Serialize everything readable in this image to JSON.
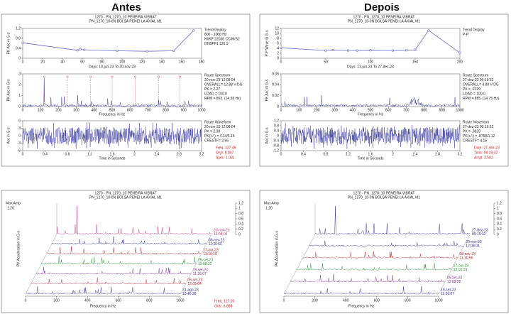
{
  "headings": [
    "Antes",
    "Depois"
  ],
  "panels_top": [
    {
      "title": "1270 - PN_1270_10 PENEIRA VIBRAT",
      "subtitle": "PN_1270_10-0N   BOLSA PENEI LA AXIAL M1",
      "trend": {
        "type": "line",
        "y_label": "PK Acc in G-s",
        "x_caption": "Days: 10-jun-23  To  20-nov-23",
        "info": [
          "Trend Display",
          "800 - 1000 Hz",
          "HI/KF 22036 CC/M/S2",
          "DHBPF1 126.9"
        ],
        "x": [
          0,
          55,
          58,
          62,
          95,
          125,
          152,
          172
        ],
        "values": [
          0.62,
          0.32,
          0.36,
          0.34,
          0.3,
          0.28,
          0.3,
          1.12
        ],
        "xlim": [
          0,
          180
        ],
        "ylim": [
          0,
          1.2
        ],
        "xticks": [
          0,
          20,
          40,
          60,
          80,
          100,
          120,
          140,
          160,
          180
        ],
        "yticks": [
          0,
          0.4,
          0.8,
          1.2
        ]
      },
      "spectrum": {
        "y_label": "PK Acc in G-s",
        "x_label": "Frequency in Hz",
        "info": [
          "Route Spectrum",
          "20-nov-23 12:08:04",
          "OVERALL= 12.83 V-DG",
          "PK = 2.27",
          "LOAD = 100.0",
          "RPM = 863. (14.38 Hz)"
        ],
        "xlim": [
          0,
          1000
        ],
        "xticks": [
          0,
          100,
          200,
          300,
          400,
          500,
          600,
          700,
          800,
          900,
          1000
        ],
        "ylim": [
          0,
          3
        ],
        "yticks": [
          0,
          1,
          2,
          3
        ]
      },
      "waveform": {
        "y_label": "Acc in G-s",
        "x_label": "Time in Seconds",
        "info": [
          "Route Waveform",
          "20-nov-23 12:08:04",
          "PK = 2.08",
          "PK(+/-) = 4.14/5.15",
          "CRESTF= 2.66"
        ],
        "xlim": [
          0,
          3.2
        ],
        "xticks": [
          0,
          0.4,
          0.8,
          1.2,
          1.6,
          2.0,
          2.4,
          2.8,
          3.2
        ],
        "ylim": [
          -6,
          6
        ],
        "yticks": [
          -6,
          -3,
          0,
          3,
          6
        ]
      },
      "cursor": [
        "Freq:   127.46",
        "Ordr:   8.867",
        "Spec:   1.031"
      ]
    },
    {
      "title": "1270 - PN_1270_10 PENEIRA VIBRAT",
      "subtitle": "PN_1270_10-0N   BOLSA PENEI LA AXIAL M1",
      "trend": {
        "type": "line",
        "y_label": "P-P Wave in G-s",
        "x_caption": "Days: 13-jun-23  To  27-dez-23",
        "info": [
          "Trend Display",
          "P-P"
        ],
        "x": [
          0,
          50,
          58,
          75,
          85,
          100,
          125,
          140,
          150,
          165,
          200
        ],
        "values": [
          4.2,
          3.1,
          3.3,
          3.1,
          3.1,
          3.2,
          3.1,
          3.2,
          3.4,
          11.2,
          2.2
        ],
        "xlim": [
          0,
          200
        ],
        "ylim": [
          0,
          12
        ],
        "xticks": [
          0,
          50,
          100,
          150,
          200
        ],
        "yticks": [
          0,
          2,
          4,
          6,
          8,
          10,
          12
        ]
      },
      "spectrum": {
        "y_label": "PK Acc in G-s",
        "x_label": "Frequency in Hz",
        "info": [
          "Route Spectrum",
          "27-dez-23 09:19:32",
          "OVERALL= 4.88 V-DG",
          "PK = .2229",
          "LOAD = 100.0",
          "RPM = 885. (14.75 Hz)"
        ],
        "xlim": [
          0,
          1000
        ],
        "xticks": [
          0,
          100,
          200,
          300,
          400,
          500,
          600,
          700,
          800,
          900,
          1000
        ],
        "ylim": [
          0,
          0.06
        ],
        "yticks": [
          0,
          0.02,
          0.04,
          0.06
        ]
      },
      "waveform": {
        "y_label": "Acc in G-s",
        "x_label": "Time in Seconds",
        "info": [
          "Route Waveform",
          "27-dez-23 09:19:32",
          "PK = .3839",
          "PK(+/-) = .8758/1.12",
          "CRESTF= 4.15"
        ],
        "xlim": [
          0,
          3.2
        ],
        "xticks": [
          0,
          0.4,
          0.8,
          1.2,
          1.6,
          2.0,
          2.4,
          2.8,
          3.2
        ],
        "ylim": [
          -1.2,
          1.2
        ],
        "yticks": [
          -1.2,
          -0.8,
          -0.4,
          0,
          0.4,
          0.8,
          1.2
        ]
      },
      "cursor": [
        "Date:   27-dez-23",
        "Time:   09:19:32",
        "Ampl:   2.502"
      ]
    }
  ],
  "panels_bottom": [
    {
      "title": "1270 - PN_1270_10 PENEIRA VIBRAT",
      "subtitle": "PN_1270_10-0N   BOLSA PENEI LA AXIAL M1",
      "max_amp_label": "Max Amp",
      "max_amp": "1.20",
      "y_label": "PK Acceleration in G-s",
      "x_label": "Frequency in Hz",
      "xlim": [
        0,
        1000
      ],
      "xticks": [
        0,
        200,
        400,
        600,
        800,
        1000
      ],
      "zlim": [
        0,
        1.2
      ],
      "zticks": [
        0,
        0.2,
        0.4,
        0.6,
        0.8,
        1.0,
        1.2
      ],
      "traces": [
        {
          "label": [
            "20-nov-23",
            "12:08:04"
          ],
          "color": "#c0307a"
        },
        {
          "label": [
            "08-nov-23",
            "11:30:56"
          ],
          "color": "#2a2a9a"
        },
        {
          "label": [
            "17-out-23",
            "13:16:19"
          ],
          "color": "#b02020"
        },
        {
          "label": [
            "25-set-23",
            "12:08:22"
          ],
          "color": "#1f8f2f"
        },
        {
          "label": [
            "19-set-23",
            "11:26:07"
          ],
          "color": "#7a2a9a"
        },
        {
          "label": [
            "05-set-23",
            "12:09:04"
          ],
          "color": "#c02030"
        },
        {
          "label": [
            "31-ago-23",
            "10:46:36"
          ],
          "color": "#2a2a9a"
        }
      ],
      "cursor": [
        "Freq:   127.00",
        "Ordr:   8.889"
      ]
    },
    {
      "title": "1270 - PN_1270_10 PENEIRA VIBRAT",
      "subtitle": "PN_1270_10-0N   BOLSA PENEI LA AXIAL M1",
      "max_amp_label": "Max Amp",
      "max_amp": "1.20",
      "y_label": "PK Acceleration in G-s",
      "x_label": "Frequency in Hz",
      "xlim": [
        0,
        1000
      ],
      "xticks": [
        0,
        200,
        400,
        600,
        800,
        1000
      ],
      "zlim": [
        0,
        1.2
      ],
      "zticks": [
        0,
        0.2,
        0.4,
        0.6,
        0.8,
        1.0,
        1.2
      ],
      "traces": [
        {
          "label": [
            "27-dez-23",
            "09:19:32"
          ],
          "color": "#2a2a9a"
        },
        {
          "label": [
            "20-nov-23",
            "12:08:04"
          ],
          "color": "#2a2a9a"
        },
        {
          "label": [
            "08-nov-23",
            "11:30:56"
          ],
          "color": "#b02020"
        },
        {
          "label": [
            "17-out-23",
            "13:16:19"
          ],
          "color": "#1f8f2f"
        },
        {
          "label": [
            "25-set-23",
            "12:08:22"
          ],
          "color": "#7a2a9a"
        },
        {
          "label": [
            "19-set-23",
            "11:26:07"
          ],
          "color": "#2a2a9a"
        }
      ]
    }
  ]
}
